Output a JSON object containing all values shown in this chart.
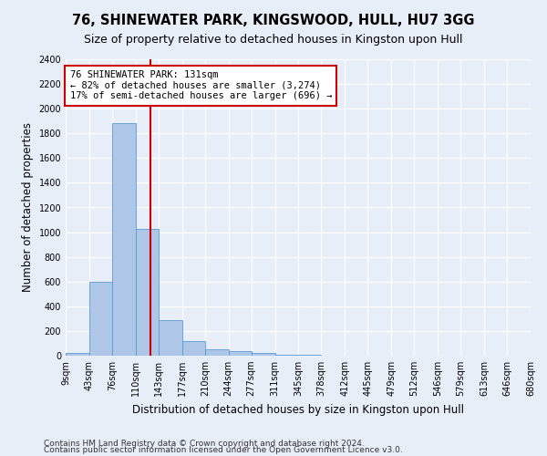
{
  "title": "76, SHINEWATER PARK, KINGSWOOD, HULL, HU7 3GG",
  "subtitle": "Size of property relative to detached houses in Kingston upon Hull",
  "xlabel": "Distribution of detached houses by size in Kingston upon Hull",
  "ylabel": "Number of detached properties",
  "footnote1": "Contains HM Land Registry data © Crown copyright and database right 2024.",
  "footnote2": "Contains public sector information licensed under the Open Government Licence v3.0.",
  "bin_edges": [
    9,
    43,
    76,
    110,
    143,
    177,
    210,
    244,
    277,
    311,
    345,
    378,
    412,
    445,
    479,
    512,
    546,
    579,
    613,
    646,
    680
  ],
  "bar_heights": [
    20,
    600,
    1880,
    1030,
    290,
    115,
    50,
    35,
    20,
    5,
    5,
    0,
    0,
    0,
    0,
    0,
    0,
    0,
    0,
    0
  ],
  "bar_color": "#aec6e8",
  "bar_edge_color": "#5b9bd5",
  "property_size": 131,
  "red_line_color": "#cc0000",
  "annotation_line1": "76 SHINEWATER PARK: 131sqm",
  "annotation_line2": "← 82% of detached houses are smaller (3,274)",
  "annotation_line3": "17% of semi-detached houses are larger (696) →",
  "annotation_box_color": "#cc0000",
  "ylim": [
    0,
    2400
  ],
  "yticks": [
    0,
    200,
    400,
    600,
    800,
    1000,
    1200,
    1400,
    1600,
    1800,
    2000,
    2200,
    2400
  ],
  "bg_color": "#e8eef8",
  "plot_bg_color": "#e8eef8",
  "grid_color": "#ffffff",
  "title_fontsize": 10.5,
  "subtitle_fontsize": 9,
  "tick_fontsize": 7,
  "ylabel_fontsize": 8.5,
  "xlabel_fontsize": 8.5,
  "footnote_fontsize": 6.5,
  "annotation_fontsize": 7.5
}
